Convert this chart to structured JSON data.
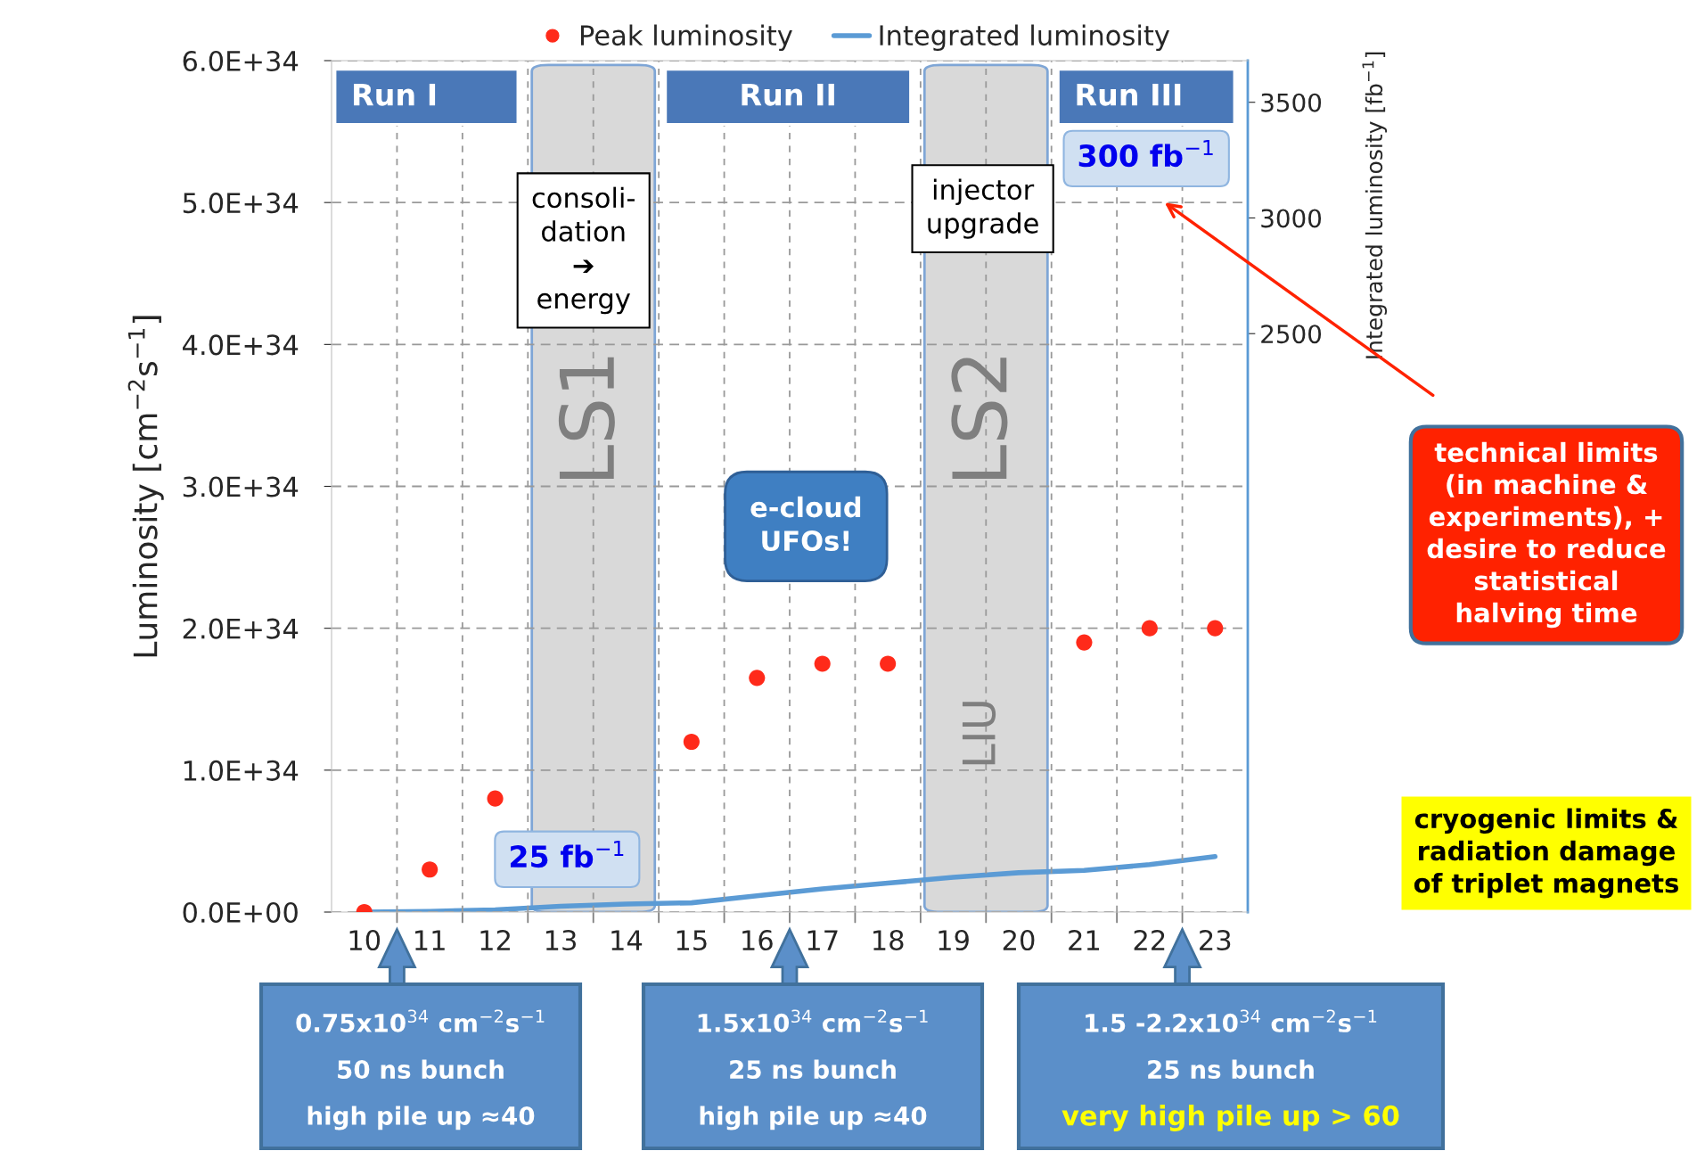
{
  "chart_data": {
    "type": "scatter",
    "categories": [
      "10",
      "11",
      "12",
      "13",
      "14",
      "15",
      "16",
      "17",
      "18",
      "19",
      "20",
      "21",
      "22",
      "23"
    ],
    "series": [
      {
        "name": "Peak luminosity",
        "color": "#ff2a1a",
        "marker": "circle",
        "values": [
          0,
          3e+33,
          8e+33,
          null,
          null,
          1.2e+34,
          1.65e+34,
          1.75e+34,
          1.75e+34,
          null,
          null,
          1.9e+34,
          2e+34,
          2e+34
        ]
      },
      {
        "name": "Integrated luminosity",
        "type": "line",
        "axis": "y2",
        "color": "#5b9bd5",
        "values": [
          0,
          3,
          10,
          25,
          35,
          40,
          70,
          100,
          125,
          150,
          170,
          180,
          205,
          240
        ]
      }
    ],
    "ylabel": "Luminosity [cm$^{−2}$s$^{−1}$]",
    "y2label": "Integrated luminosity [fb$^{−1}$]",
    "ylim": [
      0,
      6e+34
    ],
    "yticks": [
      {
        "value": 0,
        "label": "0.0E+00"
      },
      {
        "value": 1e+34,
        "label": "1.0E+34"
      },
      {
        "value": 2e+34,
        "label": "2.0E+34"
      },
      {
        "value": 3e+34,
        "label": "3.0E+34"
      },
      {
        "value": 4e+34,
        "label": "4.0E+34"
      },
      {
        "value": 5e+34,
        "label": "5.0E+34"
      },
      {
        "value": 6e+34,
        "label": "6.0E+34"
      }
    ],
    "y2lim": [
      0,
      3680
    ],
    "y2ticks": [
      2500,
      3000,
      3500
    ],
    "bands": [
      {
        "axis": "x",
        "from": "13",
        "to": "14",
        "label": "LS1",
        "color": "#d9d9d9"
      },
      {
        "axis": "x",
        "from": "19",
        "to": "20",
        "label": "LS2",
        "color": "#d9d9d9"
      }
    ],
    "annotations": [
      "Run I",
      "Run II",
      "Run III",
      "consoli-\ndation\n➔\nenergy",
      "injector\nupgrade",
      "e-cloud\nUFOs!",
      "LIU",
      "25 fb$^{−1}$",
      "300 fb$^{−1}$",
      "technical limits\n(in machine &\nexperiments), +\ndesire to reduce\nstatistical\nhalving time",
      "cryogenic limits &\nradiation damage\nof triplet magnets",
      "0.75x10$^{34}$ cm$^{−2}$s$^{−1}$\n50 ns bunch\nhigh pile up ≈40",
      "1.5x10$^{34}$ cm$^{−2}$s$^{−1}$\n25 ns bunch\nhigh pile up ≈40",
      "1.5 -2.2x10$^{34}$ cm$^{−2}$s$^{−1}$\n25 ns bunch\nvery high pile up > 60"
    ],
    "grid": true,
    "legend": "top"
  }
}
